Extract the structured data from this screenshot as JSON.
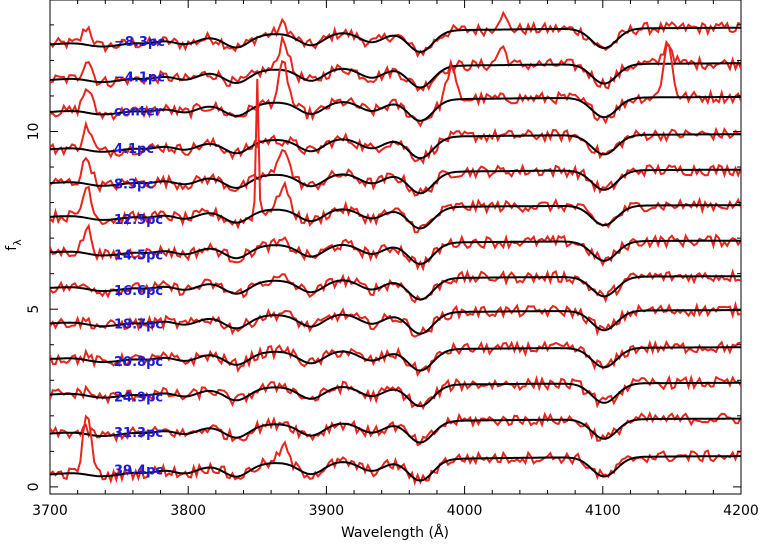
{
  "chart_data": {
    "type": "line",
    "title": "",
    "xlabel": "Wavelength (Å)",
    "ylabel_main": "f",
    "ylabel_sub": "λ",
    "xlim": [
      3700,
      4200
    ],
    "ylim": [
      -0.2,
      13.7
    ],
    "x_ticks": [
      3700,
      3800,
      3900,
      4000,
      4100,
      4200
    ],
    "y_ticks": [
      0,
      5,
      10
    ],
    "grid": false,
    "colors": {
      "observed": "#e8241c",
      "model": "#000000",
      "label": "#1a1adc"
    },
    "series_labels": [
      "−8.3pc",
      "−4.1pc",
      "center",
      "4.1pc",
      "8.3pc",
      "12.5pc",
      "14.5pc",
      "16.6pc",
      "18.7pc",
      "20.8pc",
      "24.9pc",
      "31.3pc",
      "39.4pc"
    ],
    "offsets": [
      12.95,
      11.95,
      11.0,
      9.95,
      8.95,
      7.95,
      6.95,
      5.95,
      5.0,
      3.95,
      2.95,
      1.95,
      0.9
    ],
    "start_levels": [
      12.45,
      11.45,
      10.55,
      9.5,
      8.55,
      7.6,
      6.6,
      5.6,
      4.6,
      3.6,
      2.6,
      1.5,
      0.35
    ],
    "absorption_features": [
      {
        "x": 3735,
        "depth": 0.12
      },
      {
        "x": 3750,
        "depth": 0.1
      },
      {
        "x": 3771,
        "depth": 0.12
      },
      {
        "x": 3798,
        "depth": 0.2
      },
      {
        "x": 3835,
        "depth": 0.35
      },
      {
        "x": 3889,
        "depth": 0.35
      },
      {
        "x": 3933,
        "depth": 0.3
      },
      {
        "x": 3968,
        "depth": 0.6
      },
      {
        "x": 4101,
        "depth": 0.55
      }
    ],
    "emission_lines": [
      {
        "x": 3727,
        "heights": [
          0.5,
          0.6,
          0.7,
          0.65,
          0.75,
          0.9,
          0.7,
          0.15,
          0.1,
          0.1,
          0.15,
          0.1,
          1.6
        ]
      },
      {
        "x": 3869,
        "heights": [
          0.3,
          0.9,
          1.1,
          0.0,
          0.85,
          0.75,
          0.1,
          0.1,
          0.1,
          0.1,
          0.1,
          0.1,
          0.5
        ]
      },
      {
        "x": 3850,
        "heights": [
          0.0,
          0.0,
          0.0,
          0.0,
          0.0,
          3.8,
          0.0,
          0.0,
          0.0,
          0.0,
          0.0,
          0.0,
          0.0
        ]
      },
      {
        "x": 3990,
        "heights": [
          0.0,
          0.0,
          0.9,
          0.0,
          0.0,
          0.0,
          0.0,
          0.0,
          0.0,
          0.0,
          0.0,
          0.0,
          0.0
        ]
      },
      {
        "x": 4147,
        "heights": [
          0.0,
          0.6,
          1.5,
          0.0,
          0.0,
          0.0,
          0.0,
          0.0,
          0.0,
          0.0,
          0.0,
          0.0,
          0.0
        ]
      },
      {
        "x": 4027,
        "heights": [
          0.4,
          0.5,
          0.0,
          0.0,
          0.0,
          0.0,
          0.0,
          0.0,
          0.0,
          0.0,
          0.0,
          0.0,
          0.0
        ]
      }
    ]
  }
}
